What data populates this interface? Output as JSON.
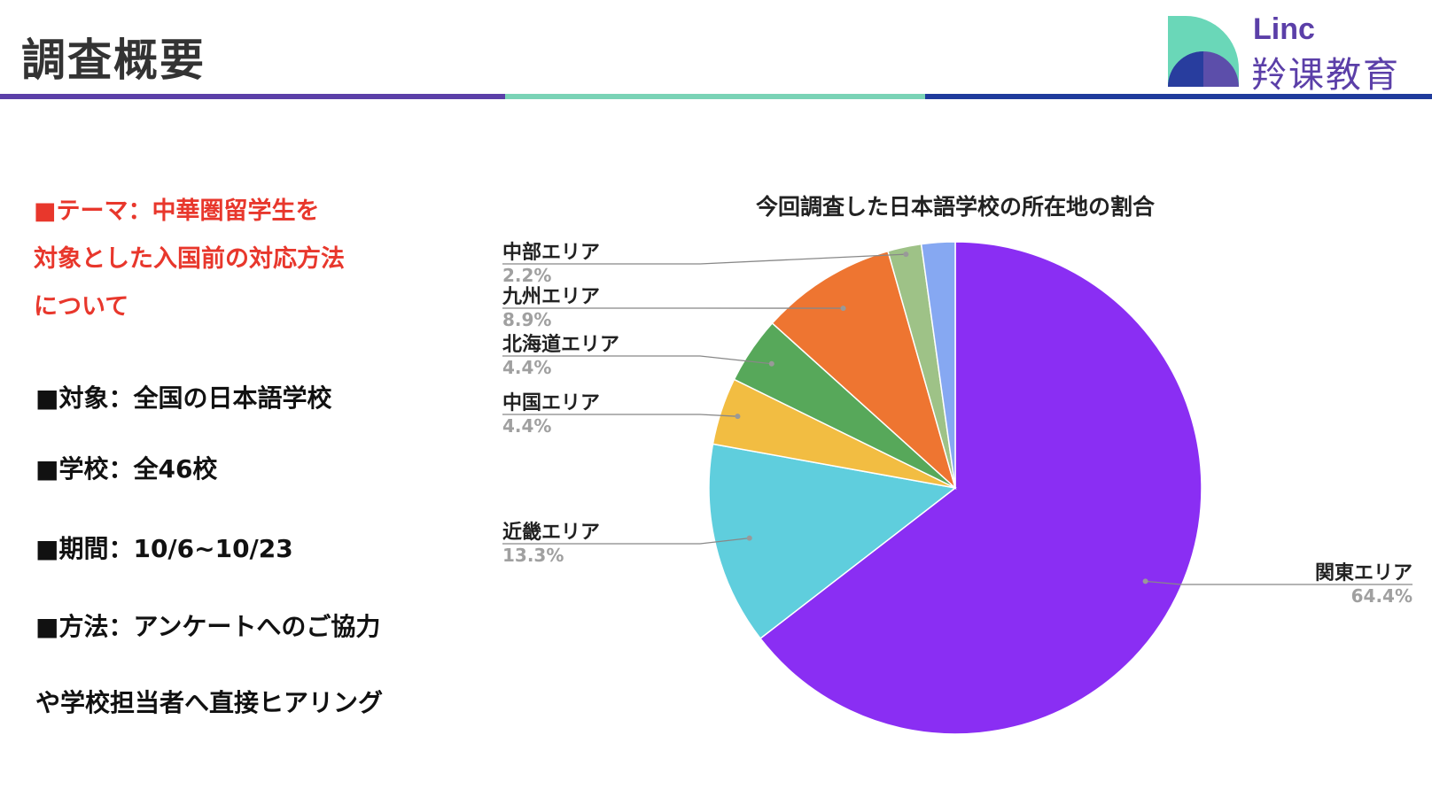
{
  "header": {
    "title": "調査概要"
  },
  "logo": {
    "latin": "Linc",
    "cjk": "羚课教育"
  },
  "theme": {
    "lines": [
      "■テーマ：中華圏留学生を",
      "対象とした入国前の対応方法",
      "について"
    ]
  },
  "info": {
    "target": "■対象：全国の日本語学校",
    "schools": "■学校：全46校",
    "period": "■期間：10/6~10/23",
    "method1": "■方法：アンケートへのご協力",
    "method2": "や学校担当者へ直接ヒアリング"
  },
  "colors": {
    "brand_purple": "#5b3fa8",
    "brand_mint": "#7ad3b6",
    "brand_navy": "#1f3b9c",
    "theme_red": "#e8372c"
  },
  "chart_data": {
    "type": "pie",
    "title": "今回調査した日本語学校の所在地の割合",
    "slices": [
      {
        "label": "関東エリア",
        "value": 64.4,
        "display": "64.4%",
        "color": "#8a2ef3"
      },
      {
        "label": "近畿エリア",
        "value": 13.3,
        "display": "13.3%",
        "color": "#5fcedd"
      },
      {
        "label": "中国エリア",
        "value": 4.4,
        "display": "4.4%",
        "color": "#f2bd42"
      },
      {
        "label": "北海道エリア",
        "value": 4.4,
        "display": "4.4%",
        "color": "#57a85a"
      },
      {
        "label": "九州エリア",
        "value": 8.9,
        "display": "8.9%",
        "color": "#ee7531"
      },
      {
        "label": "中部エリア",
        "value": 2.2,
        "display": "2.2%",
        "color": "#9ec287"
      },
      {
        "label": "",
        "value": 2.2,
        "display": "",
        "color": "#86a8f2"
      }
    ],
    "start": "12 o'clock, clockwise",
    "legend": "callout labels"
  }
}
